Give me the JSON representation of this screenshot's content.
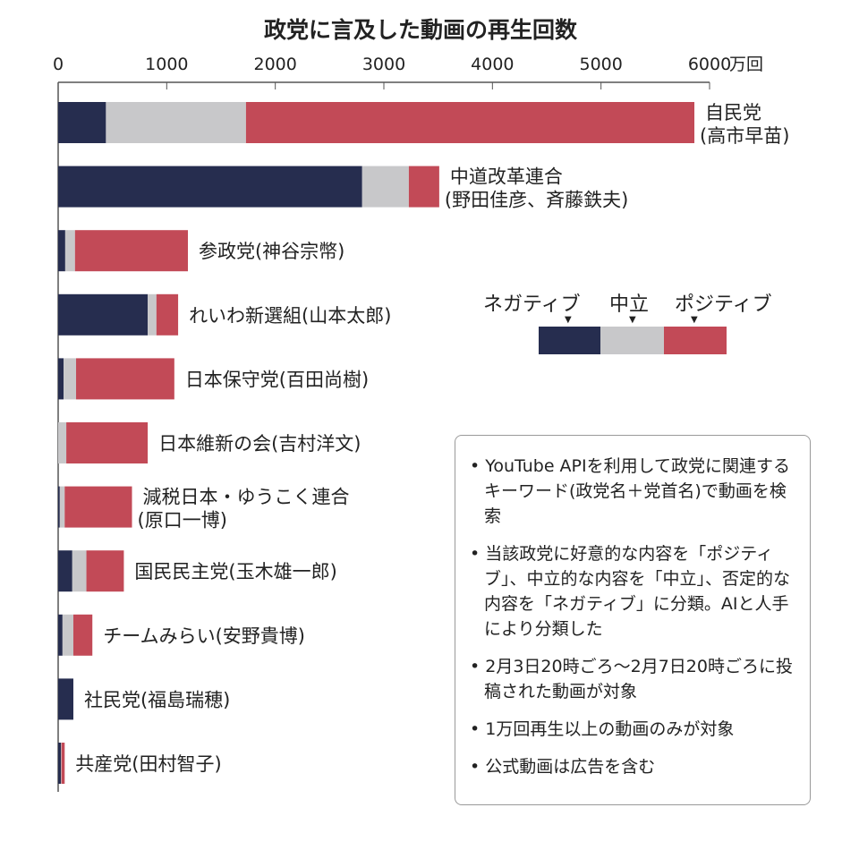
{
  "chart_data": {
    "type": "bar",
    "orientation": "horizontal",
    "stacked": true,
    "title": "政党に言及した動画の再生回数",
    "unit": "万回",
    "xlim": [
      0,
      6000
    ],
    "xticks": [
      0,
      1000,
      2000,
      3000,
      4000,
      5000,
      6000
    ],
    "categories": [
      "自民党",
      "中道改革連合",
      "参政党(神谷宗幣)",
      "れいわ新選組(山本太郎)",
      "日本保守党(百田尚樹)",
      "日本維新の会(吉村洋文)",
      "減税日本・ゆうこく連合",
      "国民民主党(玉木雄一郎)",
      "チームみらい(安野貴博)",
      "社民党(福島瑞穂)",
      "共産党(田村智子)"
    ],
    "category_sublabels": [
      "(高市早苗)",
      "(野田佳彦、斉藤鉄夫)",
      "",
      "",
      "",
      "",
      "(原口一博)",
      "",
      "",
      "",
      ""
    ],
    "series": [
      {
        "name": "ネガティブ",
        "color": "#262d4f",
        "values": [
          440,
          2800,
          65,
          825,
          50,
          0,
          15,
          130,
          40,
          140,
          25
        ]
      },
      {
        "name": "中立",
        "color": "#c8c8ca",
        "values": [
          1290,
          430,
          90,
          80,
          115,
          75,
          45,
          130,
          100,
          0,
          5
        ]
      },
      {
        "name": "ポジティブ",
        "color": "#c24a57",
        "values": [
          4130,
          280,
          1040,
          200,
          905,
          750,
          620,
          345,
          175,
          0,
          30
        ]
      }
    ],
    "legend_position": "right-middle"
  },
  "notes": [
    "YouTube APIを利用して政党に関連するキーワード(政党名＋党首名)で動画を検索",
    "当該政党に好意的な内容を「ポジティブ」、中立的な内容を「中立」、否定的な内容を「ネガティブ」に分類。AIと人手により分類した",
    "2月3日20時ごろ～2月7日20時ごろに投稿された動画が対象",
    "1万回再生以上の動画のみが対象",
    "公式動画は広告を含む"
  ]
}
